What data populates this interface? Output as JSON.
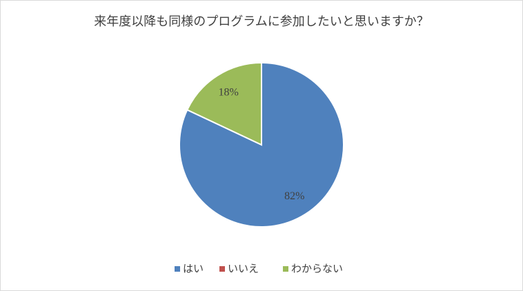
{
  "chart_data": {
    "type": "pie",
    "title": "来年度以降も同様のプログラムに参加したいと思いますか？",
    "categories": [
      "はい",
      "いいえ",
      "わからない"
    ],
    "values": [
      82,
      0,
      18
    ],
    "value_labels": [
      "82%",
      null,
      "18%"
    ],
    "colors": [
      "#4f81bd",
      "#c0504d",
      "#9bbb59"
    ],
    "legend": "bottom"
  }
}
